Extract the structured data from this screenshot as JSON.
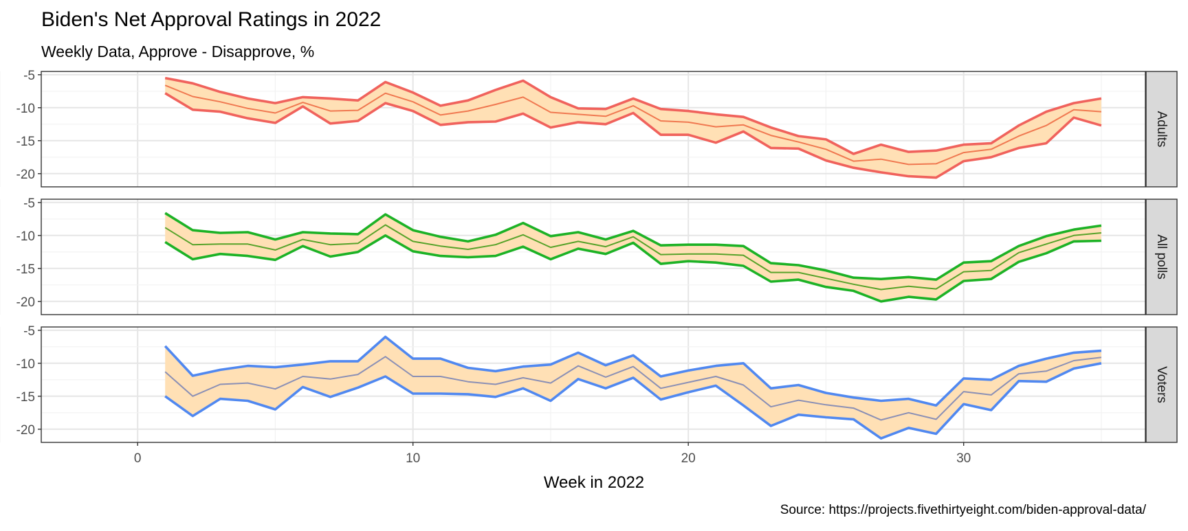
{
  "chart_data": {
    "type": "line",
    "title": "Biden's Net Approval Ratings in 2022",
    "subtitle": "Weekly Data, Approve - Disapprove, %",
    "xlabel": "Week in 2022",
    "ylabel": "",
    "caption": "Source: https://projects.fivethirtyeight.com/biden-approval-data/",
    "xlim": [
      -3.5,
      36.6
    ],
    "ylim": [
      -22.0,
      -4.5
    ],
    "x_ticks": [
      0,
      10,
      20,
      30
    ],
    "y_ticks": [
      -5,
      -10,
      -15,
      -20
    ],
    "grid": true,
    "ribbon_color": "#FFE0B5",
    "x": [
      1,
      2,
      3,
      4,
      5,
      6,
      7,
      8,
      9,
      10,
      11,
      12,
      13,
      14,
      15,
      16,
      17,
      18,
      19,
      20,
      21,
      22,
      23,
      24,
      25,
      26,
      27,
      28,
      29,
      30,
      31,
      32,
      33,
      34,
      35
    ],
    "panels": [
      {
        "strip": "Adults",
        "color": "#F0625C",
        "mid_color": "#F07850",
        "upper": [
          -5.5,
          -6.3,
          -7.6,
          -8.6,
          -9.3,
          -8.4,
          -8.6,
          -8.9,
          -6.1,
          -7.7,
          -9.7,
          -8.9,
          -7.3,
          -5.9,
          -8.4,
          -10.1,
          -10.2,
          -8.6,
          -10.2,
          -10.5,
          -11.0,
          -11.4,
          -13.0,
          -14.3,
          -14.8,
          -17.0,
          -15.6,
          -16.7,
          -16.5,
          -15.6,
          -15.4,
          -12.7,
          -10.6,
          -9.3,
          -8.6
        ],
        "middle": [
          -6.6,
          -8.3,
          -9.1,
          -10.1,
          -10.8,
          -9.2,
          -10.5,
          -10.4,
          -7.8,
          -9.1,
          -11.1,
          -10.5,
          -9.5,
          -8.4,
          -10.7,
          -11.0,
          -11.3,
          -9.7,
          -12.0,
          -12.2,
          -12.9,
          -12.6,
          -14.2,
          -15.2,
          -16.3,
          -18.1,
          -17.8,
          -18.6,
          -18.5,
          -16.8,
          -16.3,
          -14.3,
          -12.7,
          -10.3,
          -10.6
        ],
        "lower": [
          -7.8,
          -10.3,
          -10.6,
          -11.6,
          -12.3,
          -9.8,
          -12.4,
          -12.0,
          -9.3,
          -10.5,
          -12.6,
          -12.2,
          -12.1,
          -10.9,
          -13.0,
          -12.2,
          -12.5,
          -10.8,
          -14.1,
          -14.1,
          -15.3,
          -13.6,
          -16.1,
          -16.2,
          -18.0,
          -19.1,
          -19.8,
          -20.4,
          -20.6,
          -18.1,
          -17.5,
          -16.1,
          -15.4,
          -11.5,
          -12.7
        ]
      },
      {
        "strip": "All polls",
        "color": "#1DB226",
        "mid_color": "#57A32A",
        "upper": [
          -6.6,
          -9.2,
          -9.6,
          -9.5,
          -10.6,
          -9.5,
          -9.7,
          -9.8,
          -6.8,
          -9.2,
          -10.2,
          -10.9,
          -9.9,
          -8.1,
          -10.1,
          -9.5,
          -10.6,
          -9.3,
          -11.5,
          -11.4,
          -11.4,
          -11.6,
          -14.2,
          -14.5,
          -15.3,
          -16.4,
          -16.6,
          -16.3,
          -16.7,
          -14.1,
          -13.9,
          -11.6,
          -10.1,
          -9.1,
          -8.5
        ],
        "middle": [
          -8.8,
          -11.4,
          -11.3,
          -11.3,
          -12.2,
          -10.6,
          -11.4,
          -11.2,
          -8.4,
          -10.9,
          -11.6,
          -12.1,
          -11.4,
          -9.9,
          -11.8,
          -10.9,
          -11.7,
          -10.2,
          -12.9,
          -12.8,
          -12.8,
          -13.0,
          -15.6,
          -15.6,
          -16.5,
          -17.4,
          -18.2,
          -17.7,
          -18.1,
          -15.5,
          -15.3,
          -12.6,
          -11.3,
          -10.0,
          -9.6
        ],
        "lower": [
          -11.0,
          -13.6,
          -12.8,
          -13.1,
          -13.7,
          -11.6,
          -13.2,
          -12.5,
          -10.0,
          -12.4,
          -13.1,
          -13.3,
          -13.1,
          -11.7,
          -13.6,
          -12.0,
          -12.8,
          -11.1,
          -14.3,
          -13.9,
          -14.1,
          -14.6,
          -17.0,
          -16.7,
          -17.8,
          -18.4,
          -20.0,
          -19.3,
          -19.7,
          -16.9,
          -16.6,
          -14.0,
          -12.7,
          -10.9,
          -10.8
        ]
      },
      {
        "strip": "Voters",
        "color": "#5088F0",
        "mid_color": "#8A8FB5",
        "upper": [
          -7.4,
          -11.9,
          -11.0,
          -10.4,
          -10.6,
          -10.2,
          -9.7,
          -9.7,
          -6.0,
          -9.3,
          -9.3,
          -10.7,
          -11.2,
          -10.5,
          -10.2,
          -8.4,
          -10.3,
          -8.8,
          -12.0,
          -11.1,
          -10.4,
          -10.0,
          -13.8,
          -13.3,
          -14.5,
          -15.2,
          -15.7,
          -15.4,
          -16.4,
          -12.3,
          -12.5,
          -10.4,
          -9.3,
          -8.4,
          -8.1
        ],
        "middle": [
          -11.3,
          -15.0,
          -13.2,
          -13.0,
          -13.9,
          -12.0,
          -12.4,
          -11.7,
          -9.0,
          -12.0,
          -12.0,
          -12.8,
          -13.2,
          -12.2,
          -13.0,
          -10.4,
          -12.1,
          -10.5,
          -13.8,
          -12.9,
          -12.0,
          -13.3,
          -16.6,
          -15.6,
          -16.3,
          -16.8,
          -18.6,
          -17.5,
          -18.5,
          -14.3,
          -14.8,
          -11.6,
          -11.2,
          -9.6,
          -9.1
        ],
        "lower": [
          -15.0,
          -18.0,
          -15.4,
          -15.7,
          -17.0,
          -13.6,
          -15.1,
          -13.7,
          -12.0,
          -14.6,
          -14.6,
          -14.7,
          -15.1,
          -13.8,
          -15.7,
          -12.4,
          -13.8,
          -12.2,
          -15.5,
          -14.4,
          -13.4,
          -16.4,
          -19.5,
          -17.8,
          -18.2,
          -18.5,
          -21.4,
          -19.8,
          -20.7,
          -16.2,
          -17.1,
          -12.7,
          -12.8,
          -10.8,
          -10.0
        ]
      }
    ]
  }
}
